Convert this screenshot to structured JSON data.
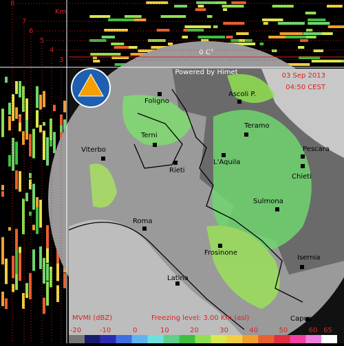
{
  "header": {
    "powered": "Powered by Himet",
    "date": "03 Sep 2013",
    "time": "04:50 CEST"
  },
  "section": {
    "unit": "Km",
    "heights": [
      "8",
      "7",
      "6",
      "5",
      "4",
      "3"
    ],
    "freezing": "0 C°"
  },
  "cities": [
    "Ascoli P.",
    "Foligno",
    "Teramo",
    "Terni",
    "Pescara",
    "Viterbo",
    "Rieti",
    "L'Aquila",
    "Chieti",
    "Sulmona",
    "Roma",
    "Frosinone",
    "Isernia",
    "Latina",
    "Capua"
  ],
  "legend": {
    "product": "MVMI (dBZ)",
    "freezing_level": "Freezing level: 3.00 Km (asl)",
    "ticks": [
      -20,
      -10,
      0,
      10,
      20,
      30,
      40,
      50,
      60,
      65
    ],
    "colors": [
      "#777777",
      "#1a1a6e",
      "#2b2bb0",
      "#3d6fe0",
      "#5fb4f0",
      "#6fe0e0",
      "#5fd08a",
      "#3fbf3f",
      "#8fe04f",
      "#d8e84f",
      "#f0d040",
      "#f0a030",
      "#e86030",
      "#e03040",
      "#f040a0",
      "#f080e0",
      "#ffffff"
    ]
  }
}
